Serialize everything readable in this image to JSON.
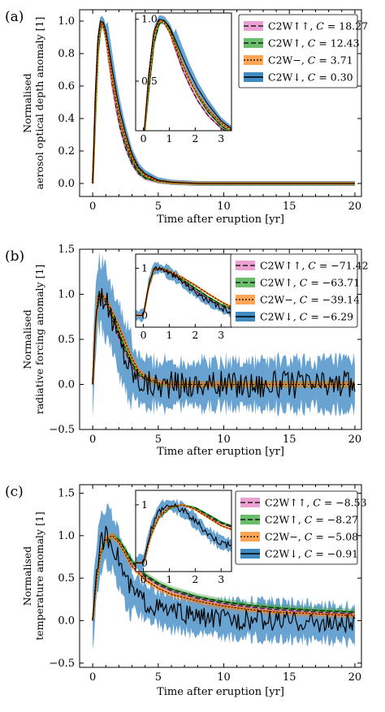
{
  "chart_data": [
    {
      "panel": "(a)",
      "type": "line",
      "ylabel_lines": [
        "Normalised",
        "aerosol optical depth anomaly [1]"
      ],
      "xlabel": "Time after eruption [yr]",
      "xlim": [
        -1,
        20.5
      ],
      "ylim": [
        -0.08,
        1.07
      ],
      "xticks": [
        0,
        5,
        10,
        15,
        20
      ],
      "yticks": [
        0.0,
        0.2,
        0.4,
        0.6,
        0.8,
        1.0
      ],
      "ytick_labels": [
        "0.0",
        "0.2",
        "0.4",
        "0.6",
        "0.8",
        "1.0"
      ],
      "legend_position": "top-right",
      "series": [
        {
          "name": "C2W↑↑",
          "C": "18.27",
          "color": "#e377c2",
          "dash": "6,3",
          "x": [
            0,
            0.2,
            0.4,
            0.6,
            0.8,
            1.0,
            1.2,
            1.5,
            1.8,
            2.1,
            2.5,
            3.0,
            3.5,
            4,
            5,
            6,
            8,
            10,
            14,
            20
          ],
          "y": [
            0,
            0.45,
            0.82,
            0.97,
            0.98,
            0.9,
            0.78,
            0.6,
            0.46,
            0.34,
            0.22,
            0.12,
            0.06,
            0.03,
            0.01,
            0.005,
            0,
            0,
            0,
            0
          ]
        },
        {
          "name": "C2W↑",
          "C": "12.43",
          "color": "#2ca02c",
          "dash": "6,3",
          "x": [
            0,
            0.2,
            0.4,
            0.6,
            0.8,
            1.0,
            1.2,
            1.5,
            1.8,
            2.1,
            2.5,
            3.0,
            3.5,
            4,
            5,
            6,
            8,
            10,
            14,
            20
          ],
          "y": [
            0,
            0.42,
            0.8,
            0.96,
            0.99,
            0.93,
            0.82,
            0.64,
            0.5,
            0.38,
            0.25,
            0.14,
            0.07,
            0.035,
            0.012,
            0.005,
            0,
            0,
            0,
            0
          ]
        },
        {
          "name": "C2W−",
          "C": "3.71",
          "color": "#ff7f0e",
          "dash": "2,2",
          "x": [
            0,
            0.2,
            0.4,
            0.6,
            0.8,
            1.0,
            1.2,
            1.5,
            1.8,
            2.1,
            2.5,
            3.0,
            3.5,
            4,
            5,
            6,
            8,
            10,
            14,
            20
          ],
          "y": [
            0,
            0.5,
            0.86,
            0.99,
            0.97,
            0.9,
            0.8,
            0.64,
            0.5,
            0.39,
            0.27,
            0.16,
            0.09,
            0.05,
            0.015,
            0.006,
            0,
            0,
            0,
            0
          ]
        },
        {
          "name": "C2W↓",
          "C": "0.30",
          "color": "#1f77b4",
          "dash": "",
          "x": [
            0,
            0.2,
            0.4,
            0.6,
            0.8,
            1.0,
            1.2,
            1.5,
            1.8,
            2.1,
            2.5,
            3.0,
            3.5,
            4,
            5,
            6,
            8,
            10,
            14,
            20
          ],
          "y": [
            0,
            0.55,
            0.9,
            1.0,
            0.99,
            0.94,
            0.85,
            0.7,
            0.56,
            0.44,
            0.31,
            0.18,
            0.1,
            0.06,
            0.02,
            0.008,
            0,
            0,
            0,
            0
          ]
        }
      ],
      "inset": {
        "xlim": [
          -0.3,
          3.4
        ],
        "ylim": [
          0.1,
          1.05
        ],
        "xticks": [
          0,
          1,
          2,
          3
        ],
        "yticks": [
          0.5,
          1.0
        ],
        "ytick_labels": [
          "0.5",
          "1.0"
        ]
      }
    },
    {
      "panel": "(b)",
      "type": "line",
      "ylabel_lines": [
        "Normalised",
        "radiative forcing anomaly [1]"
      ],
      "xlabel": "Time after eruption [yr]",
      "xlim": [
        -1,
        20.5
      ],
      "ylim": [
        -0.5,
        1.5
      ],
      "xticks": [
        0,
        5,
        10,
        15,
        20
      ],
      "yticks": [
        -0.5,
        0.0,
        0.5,
        1.0,
        1.5
      ],
      "ytick_labels": [
        "−0.5",
        "0.0",
        "0.5",
        "1.0",
        "1.5"
      ],
      "legend_position": "top-right",
      "noise_amplitude": 0.13,
      "series": [
        {
          "name": "C2W↑↑",
          "C": "−71.42",
          "color": "#e377c2",
          "dash": "6,3",
          "x": [
            0,
            0.2,
            0.4,
            0.6,
            0.8,
            1.0,
            1.3,
            1.6,
            2.0,
            2.5,
            3.0,
            3.5,
            4,
            5,
            6,
            8,
            10,
            14,
            20
          ],
          "y": [
            0,
            0.6,
            0.95,
            0.98,
            0.95,
            0.9,
            0.8,
            0.68,
            0.52,
            0.35,
            0.2,
            0.1,
            0.05,
            0.01,
            0,
            0,
            0,
            0,
            0
          ]
        },
        {
          "name": "C2W↑",
          "C": "−63.71",
          "color": "#2ca02c",
          "dash": "6,3",
          "x": [
            0,
            0.2,
            0.4,
            0.6,
            0.8,
            1.0,
            1.3,
            1.6,
            2.0,
            2.5,
            3.0,
            3.5,
            4,
            5,
            6,
            8,
            10,
            14,
            20
          ],
          "y": [
            0,
            0.6,
            0.96,
            1.0,
            0.97,
            0.92,
            0.83,
            0.72,
            0.57,
            0.39,
            0.23,
            0.12,
            0.06,
            0.01,
            0,
            0,
            0,
            0,
            0
          ]
        },
        {
          "name": "C2W−",
          "C": "−39.14",
          "color": "#ff7f0e",
          "dash": "2,2",
          "x": [
            0,
            0.2,
            0.4,
            0.6,
            0.8,
            1.0,
            1.3,
            1.6,
            2.0,
            2.5,
            3.0,
            3.5,
            4,
            5,
            6,
            8,
            10,
            14,
            20
          ],
          "y": [
            0,
            0.62,
            0.98,
            1.0,
            0.98,
            0.94,
            0.86,
            0.77,
            0.64,
            0.46,
            0.29,
            0.15,
            0.08,
            0.02,
            0,
            0,
            0,
            0,
            0
          ]
        },
        {
          "name": "C2W↓",
          "C": "−6.29",
          "color": "#1f77b4",
          "dash": "",
          "x": [
            0,
            0.2,
            0.4,
            0.6,
            0.8,
            1.0,
            1.3,
            1.6,
            2.0,
            2.5,
            3.0,
            3.5,
            4,
            5,
            6,
            8,
            10,
            14,
            20
          ],
          "y": [
            0,
            0.65,
            1.0,
            1.0,
            0.97,
            0.9,
            0.8,
            0.67,
            0.5,
            0.3,
            0.15,
            0.06,
            0.02,
            0,
            0,
            0,
            0,
            0,
            0
          ]
        }
      ],
      "inset": {
        "xlim": [
          -0.3,
          3.4
        ],
        "ylim": [
          -0.25,
          1.3
        ],
        "xticks": [
          0,
          1,
          2,
          3
        ],
        "yticks": [
          0,
          1
        ],
        "ytick_labels": [
          "0",
          "1"
        ]
      }
    },
    {
      "panel": "(c)",
      "type": "line",
      "ylabel_lines": [
        "Normalised",
        "temperature anomaly [1]"
      ],
      "xlabel": "Time after eruption [yr]",
      "xlim": [
        -1,
        20.5
      ],
      "ylim": [
        -0.55,
        1.6
      ],
      "xticks": [
        0,
        5,
        10,
        15,
        20
      ],
      "yticks": [
        -0.5,
        0.0,
        0.5,
        1.0,
        1.5
      ],
      "ytick_labels": [
        "−0.5",
        "0.0",
        "0.5",
        "1.0",
        "1.5"
      ],
      "legend_position": "top-right",
      "noise_amplitude": 0.1,
      "series": [
        {
          "name": "C2W↑↑",
          "C": "−8.53",
          "color": "#e377c2",
          "dash": "6,3",
          "x": [
            0,
            0.3,
            0.6,
            1.0,
            1.5,
            2.0,
            2.5,
            3.0,
            4,
            5,
            6,
            8,
            10,
            12,
            14,
            17,
            20
          ],
          "y": [
            0,
            0.5,
            0.8,
            0.95,
            1.0,
            0.93,
            0.8,
            0.68,
            0.52,
            0.42,
            0.35,
            0.26,
            0.2,
            0.16,
            0.13,
            0.1,
            0.08
          ]
        },
        {
          "name": "C2W↑",
          "C": "−8.27",
          "color": "#2ca02c",
          "dash": "6,3",
          "x": [
            0,
            0.3,
            0.6,
            1.0,
            1.5,
            2.0,
            2.5,
            3.0,
            4,
            5,
            6,
            8,
            10,
            12,
            14,
            17,
            20
          ],
          "y": [
            0,
            0.48,
            0.78,
            0.94,
            1.0,
            0.95,
            0.83,
            0.7,
            0.54,
            0.44,
            0.37,
            0.28,
            0.22,
            0.18,
            0.15,
            0.12,
            0.1
          ]
        },
        {
          "name": "C2W−",
          "C": "−5.08",
          "color": "#ff7f0e",
          "dash": "2,2",
          "x": [
            0,
            0.3,
            0.6,
            1.0,
            1.5,
            2.0,
            2.5,
            3.0,
            4,
            5,
            6,
            8,
            10,
            12,
            14,
            17,
            20
          ],
          "y": [
            0,
            0.5,
            0.8,
            0.96,
            1.0,
            0.92,
            0.78,
            0.64,
            0.48,
            0.38,
            0.31,
            0.23,
            0.17,
            0.13,
            0.1,
            0.08,
            0.06
          ]
        },
        {
          "name": "C2W↓",
          "C": "−0.91",
          "color": "#1f77b4",
          "dash": "",
          "x": [
            0,
            0.3,
            0.6,
            1.0,
            1.5,
            2.0,
            2.5,
            3.0,
            4,
            5,
            6,
            8,
            10,
            12,
            14,
            17,
            20
          ],
          "y": [
            0,
            0.6,
            0.9,
            1.0,
            0.92,
            0.72,
            0.5,
            0.35,
            0.22,
            0.15,
            0.1,
            0.05,
            0.02,
            0.01,
            0.0,
            -0.02,
            -0.05
          ]
        }
      ],
      "inset": {
        "xlim": [
          -0.3,
          3.4
        ],
        "ylim": [
          -0.15,
          1.25
        ],
        "xticks": [
          0,
          1,
          2,
          3
        ],
        "yticks": [
          0,
          1
        ],
        "ytick_labels": [
          "0",
          "1"
        ]
      }
    }
  ]
}
